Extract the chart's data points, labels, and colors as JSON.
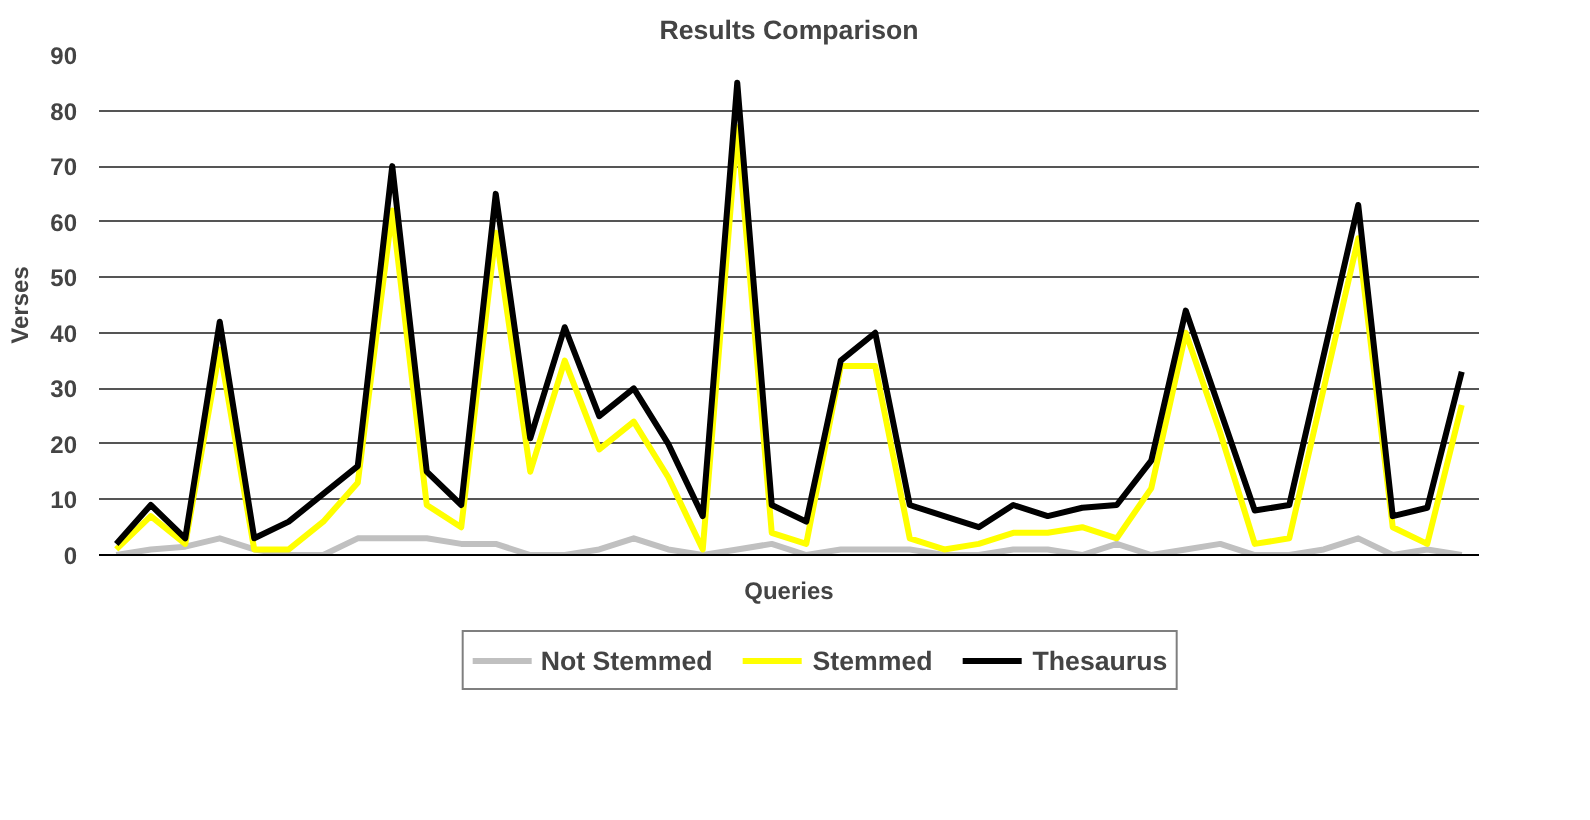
{
  "chart_data": {
    "type": "line",
    "title": "Results Comparison",
    "xlabel": "Queries",
    "ylabel": "Verses",
    "categories": [
      null,
      null,
      null,
      null,
      null,
      null,
      null,
      null,
      null,
      null,
      null,
      null,
      null,
      null,
      null,
      null,
      null,
      null,
      null,
      null,
      null,
      null,
      null,
      null,
      null,
      null,
      null,
      null,
      null,
      null,
      null,
      null,
      null,
      null,
      null,
      null,
      null,
      null,
      null,
      null
    ],
    "series": [
      {
        "name": "Not Stemmed",
        "color": "#c0c0c0",
        "values": [
          0,
          1,
          1.5,
          3,
          1,
          0,
          0,
          3,
          3,
          3,
          2,
          2,
          0,
          0,
          1,
          3,
          1,
          0,
          1,
          2,
          0,
          1,
          1,
          1,
          0,
          0,
          1,
          1,
          0,
          2,
          0,
          1,
          2,
          0,
          0,
          1,
          3,
          0,
          1,
          0
        ]
      },
      {
        "name": "Stemmed",
        "color": "#ffff00",
        "values": [
          1,
          7,
          2,
          37,
          1,
          1,
          6,
          13,
          62,
          9,
          5,
          58,
          15,
          35,
          19,
          24,
          14,
          1,
          77,
          4,
          2,
          34,
          34,
          3,
          1,
          2,
          4,
          4,
          5,
          3,
          12,
          40,
          22,
          2,
          3,
          30,
          57,
          5,
          2,
          27
        ]
      },
      {
        "name": "Thesaurus",
        "color": "#000000",
        "values": [
          2,
          9,
          3,
          42,
          3,
          6,
          11,
          16,
          70,
          15,
          9,
          65,
          21,
          41,
          25,
          30,
          20,
          7,
          85,
          9,
          6,
          35,
          40,
          9,
          7,
          5,
          9,
          7,
          8.5,
          9,
          17,
          44,
          26,
          8,
          9,
          36,
          63,
          7,
          8.5,
          33
        ]
      }
    ],
    "ylim": [
      0,
      90
    ],
    "yticks": [
      0,
      10,
      20,
      30,
      40,
      50,
      60,
      70,
      80,
      90
    ],
    "grid": "y",
    "legend": "bottom",
    "marker": "none",
    "line_style": "solid"
  }
}
